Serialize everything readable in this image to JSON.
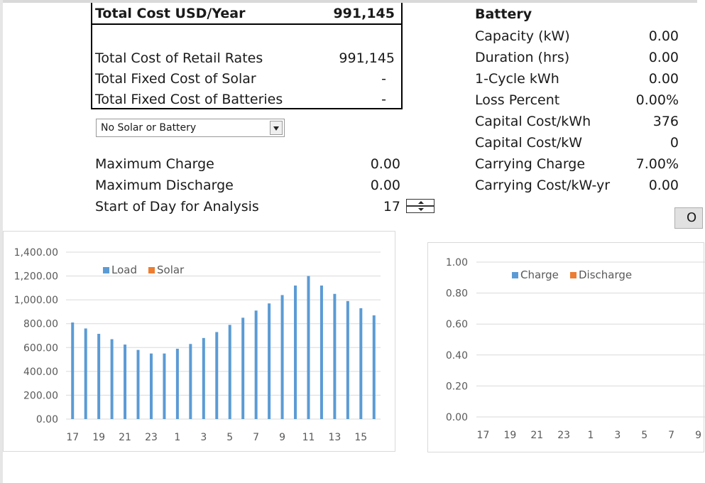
{
  "costs": {
    "header_label": "Total Cost USD/Year",
    "header_value": "991,145",
    "rows": [
      {
        "label": "Total Cost of Retail Rates",
        "value": "991,145"
      },
      {
        "label": "Total Fixed Cost of Solar",
        "value": "-"
      },
      {
        "label": "Total Fixed Cost of Batteries",
        "value": "-"
      }
    ]
  },
  "scenario_select": {
    "value": "No Solar or Battery"
  },
  "charge": {
    "rows": [
      {
        "label": "Maximum Charge",
        "value": "0.00"
      },
      {
        "label": "Maximum Discharge",
        "value": "0.00"
      },
      {
        "label": "Start of Day for Analysis",
        "value": "17"
      }
    ]
  },
  "battery": {
    "title": "Battery",
    "rows": [
      {
        "label": "Capacity (kW)",
        "value": "0.00"
      },
      {
        "label": "Duration (hrs)",
        "value": "0.00"
      },
      {
        "label": "1-Cycle kWh",
        "value": "0.00"
      },
      {
        "label": "Loss Percent",
        "value": "0.00%"
      },
      {
        "label": "Capital Cost/kWh",
        "value": "376"
      },
      {
        "label": "Capital Cost/kW",
        "value": "0"
      },
      {
        "label": "Carrying Charge",
        "value": "7.00%"
      },
      {
        "label": "Carrying Cost/kW-yr",
        "value": "0.00"
      }
    ]
  },
  "options_button": {
    "label": "O"
  },
  "colors": {
    "load": "#5b9bd5",
    "solar": "#ed7d31",
    "charge": "#5b9bd5",
    "discharge": "#ed7d31",
    "grid": "#d9d9d9",
    "axis_text": "#595959"
  },
  "chart_data": [
    {
      "type": "bar",
      "categories": [
        "17",
        "18",
        "19",
        "20",
        "21",
        "22",
        "23",
        "0",
        "1",
        "2",
        "3",
        "4",
        "5",
        "6",
        "7",
        "8",
        "9",
        "10",
        "11",
        "12",
        "13",
        "14",
        "15",
        "16"
      ],
      "tick_labels": [
        "17",
        "19",
        "21",
        "23",
        "1",
        "3",
        "5",
        "7",
        "9",
        "11",
        "13",
        "15"
      ],
      "series": [
        {
          "name": "Load",
          "values": [
            810,
            760,
            715,
            670,
            625,
            580,
            550,
            550,
            590,
            630,
            680,
            730,
            790,
            850,
            910,
            970,
            1040,
            1120,
            1200,
            1120,
            1050,
            990,
            930,
            870
          ]
        },
        {
          "name": "Solar",
          "values": [
            0,
            0,
            0,
            0,
            0,
            0,
            0,
            0,
            0,
            0,
            0,
            0,
            0,
            0,
            0,
            0,
            0,
            0,
            0,
            0,
            0,
            0,
            0,
            0
          ]
        }
      ],
      "yticks": [
        "1,400.00",
        "1,200.00",
        "1,000.00",
        "800.00",
        "600.00",
        "400.00",
        "200.00",
        "0.00"
      ],
      "ylim": [
        0,
        1400
      ],
      "grid": true,
      "legend": "top-left"
    },
    {
      "type": "bar",
      "categories": [
        "17",
        "18",
        "19",
        "20",
        "21",
        "22",
        "23",
        "0",
        "1",
        "2",
        "3",
        "4",
        "5",
        "6",
        "7",
        "8",
        "9"
      ],
      "tick_labels": [
        "17",
        "19",
        "21",
        "23",
        "1",
        "3",
        "5",
        "7",
        "9"
      ],
      "series": [
        {
          "name": "Charge",
          "values": [
            0,
            0,
            0,
            0,
            0,
            0,
            0,
            0,
            0,
            0,
            0,
            0,
            0,
            0,
            0,
            0,
            0
          ]
        },
        {
          "name": "Discharge",
          "values": [
            0,
            0,
            0,
            0,
            0,
            0,
            0,
            0,
            0,
            0,
            0,
            0,
            0,
            0,
            0,
            0,
            0
          ]
        }
      ],
      "yticks": [
        "1.00",
        "0.80",
        "0.60",
        "0.40",
        "0.20",
        "0.00"
      ],
      "ylim": [
        0,
        1
      ],
      "grid": true,
      "legend": "top"
    }
  ]
}
